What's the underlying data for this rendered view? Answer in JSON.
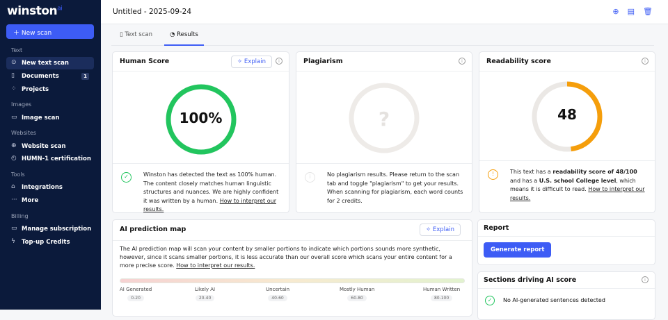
{
  "sidebar": {
    "logo": "winston",
    "logo_sup": "ai",
    "new_scan": "New scan",
    "sections": [
      "Text",
      "Images",
      "Websites",
      "Tools",
      "Billing"
    ],
    "items": [
      {
        "label": "New text scan",
        "icon": "⊙"
      },
      {
        "label": "Documents",
        "icon": "▯",
        "badge": "1"
      },
      {
        "label": "Projects",
        "icon": "⁘"
      },
      {
        "label": "Image scan",
        "icon": "▭"
      },
      {
        "label": "Website scan",
        "icon": "⊕"
      },
      {
        "label": "HUMN-1 certification",
        "icon": "◴"
      },
      {
        "label": "Integrations",
        "icon": "⌂"
      },
      {
        "label": "More",
        "icon": "···"
      },
      {
        "label": "Manage subscription",
        "icon": "▭"
      },
      {
        "label": "Top-up Credits",
        "icon": "ϟ"
      }
    ]
  },
  "header": {
    "title": "Untitled - 2025-09-24",
    "icons": [
      "add-icon",
      "archive-icon",
      "trash-icon"
    ]
  },
  "tabs": [
    {
      "label": "Text scan"
    },
    {
      "label": "Results"
    }
  ],
  "human": {
    "title": "Human Score",
    "explain": "Explain",
    "score": "100%",
    "value": 100,
    "color": "#22c55e",
    "text": "Winston has detected the text as 100% human. The content closely matches human linguistic structures and nuances. We are highly confident it was written by a human.",
    "link": "How to interpret our results."
  },
  "plagiarism": {
    "title": "Plagiarism",
    "score": "?",
    "text": "No plagiarism results. Please return to the scan tab and toggle \"plagiarism\" to get your results. When scanning for plagiarism, each word counts for 2 credits."
  },
  "readability": {
    "title": "Readability score",
    "score": "48",
    "value": 48,
    "color": "#f59e0b",
    "t1": "This text has a ",
    "b1": "readability score of 48/100",
    "t2": " and has a ",
    "b2": "U.S. school College level",
    "t3": ", which means it is difficult to read. ",
    "link": "How to interpret our results."
  },
  "map": {
    "title": "AI prediction map",
    "explain": "Explain",
    "text": "The AI prediction map will scan your content by smaller portions to indicate which portions sounds more synthetic, however, since it scans smaller portions, it is less accurate than our overall score which scans your entire content for a more precise score. ",
    "link": "How to interpret our results.",
    "labels": [
      {
        "name": "AI Generated",
        "range": "0-20"
      },
      {
        "name": "Likely AI",
        "range": "20-40"
      },
      {
        "name": "Uncertain",
        "range": "40-60"
      },
      {
        "name": "Mostly Human",
        "range": "60-80"
      },
      {
        "name": "Human Written",
        "range": "80-100"
      }
    ]
  },
  "report": {
    "title": "Report",
    "button": "Generate report"
  },
  "sections": {
    "title": "Sections driving AI score",
    "text": "No AI-generated sentences detected"
  }
}
